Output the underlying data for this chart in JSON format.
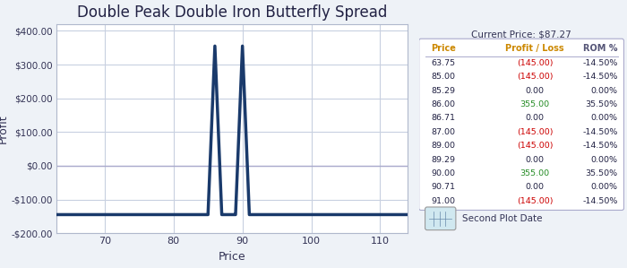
{
  "title": "Double Peak Double Iron Butterfly Spread",
  "xlabel": "Price",
  "ylabel": "Profit",
  "current_price_label": "Current Price: $87.27",
  "xlim": [
    63,
    114
  ],
  "ylim": [
    -200,
    420
  ],
  "yticks": [
    -200,
    -100,
    0,
    100,
    200,
    300,
    400
  ],
  "ytick_labels": [
    "-$200.00",
    "-$100.00",
    "$0.00",
    "$100.00",
    "$200.00",
    "$300.00",
    "$400.00"
  ],
  "xticks": [
    70,
    80,
    90,
    100,
    110
  ],
  "bg_color": "#eef2f7",
  "plot_bg_color": "#ffffff",
  "line_color": "#1a3a6b",
  "line_width": 2.5,
  "zero_line_color": "#aaaacc",
  "grid_color": "#c8d0e0",
  "table_header_color": "#cc8800",
  "table_rows": [
    {
      "price": "63.75",
      "profit": "(145.00)",
      "rom": "-14.50%",
      "profit_color": "red"
    },
    {
      "price": "85.00",
      "profit": "(145.00)",
      "rom": "-14.50%",
      "profit_color": "red"
    },
    {
      "price": "85.29",
      "profit": "0.00",
      "rom": "0.00%",
      "profit_color": "black"
    },
    {
      "price": "86.00",
      "profit": "355.00",
      "rom": "35.50%",
      "profit_color": "green"
    },
    {
      "price": "86.71",
      "profit": "0.00",
      "rom": "0.00%",
      "profit_color": "black"
    },
    {
      "price": "87.00",
      "profit": "(145.00)",
      "rom": "-14.50%",
      "profit_color": "red"
    },
    {
      "price": "89.00",
      "profit": "(145.00)",
      "rom": "-14.50%",
      "profit_color": "red"
    },
    {
      "price": "89.29",
      "profit": "0.00",
      "rom": "0.00%",
      "profit_color": "black"
    },
    {
      "price": "90.00",
      "profit": "355.00",
      "rom": "35.50%",
      "profit_color": "green"
    },
    {
      "price": "90.71",
      "profit": "0.00",
      "rom": "0.00%",
      "profit_color": "black"
    },
    {
      "price": "91.00",
      "profit": "(145.00)",
      "rom": "-14.50%",
      "profit_color": "red"
    }
  ],
  "payoff_x": [
    63,
    85.0,
    85.29,
    86.0,
    86.71,
    87.0,
    87.01,
    88.99,
    89.0,
    89.29,
    90.0,
    90.71,
    91.0,
    91.01,
    114
  ],
  "payoff_y": [
    -145,
    -145,
    0,
    355,
    0,
    -145,
    -145,
    -145,
    -145,
    0,
    355,
    0,
    -145,
    -145,
    -145
  ]
}
